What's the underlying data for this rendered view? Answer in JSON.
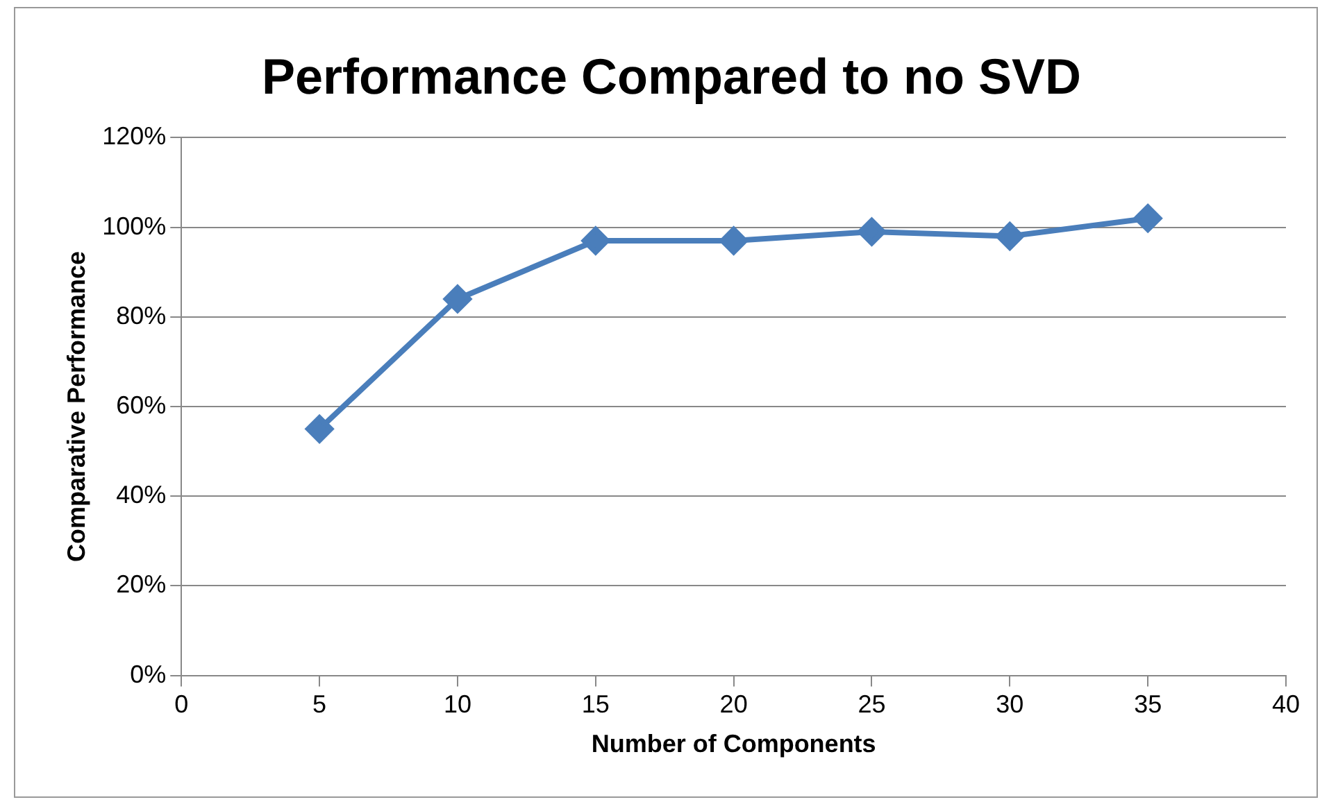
{
  "chart_data": {
    "type": "line",
    "title": "Performance Compared to no SVD",
    "xlabel": "Number of Components",
    "ylabel": "Comparative Performance",
    "x": [
      5,
      10,
      15,
      20,
      25,
      30,
      35
    ],
    "series": [
      {
        "color": "#4a7ebb",
        "values": [
          55,
          84,
          97,
          97,
          99,
          98,
          102
        ]
      }
    ],
    "xlim": [
      0,
      40
    ],
    "xticks": [
      0,
      5,
      10,
      15,
      20,
      25,
      30,
      35,
      40
    ],
    "ylim": [
      0,
      120
    ],
    "yticks": [
      {
        "value": 0,
        "label": "0%"
      },
      {
        "value": 20,
        "label": "20%"
      },
      {
        "value": 40,
        "label": "40%"
      },
      {
        "value": 60,
        "label": "60%"
      },
      {
        "value": 80,
        "label": "80%"
      },
      {
        "value": 100,
        "label": "100%"
      },
      {
        "value": 120,
        "label": "120%"
      }
    ],
    "grid": "y",
    "legend": false,
    "marker": "diamond",
    "line_style": "solid"
  }
}
